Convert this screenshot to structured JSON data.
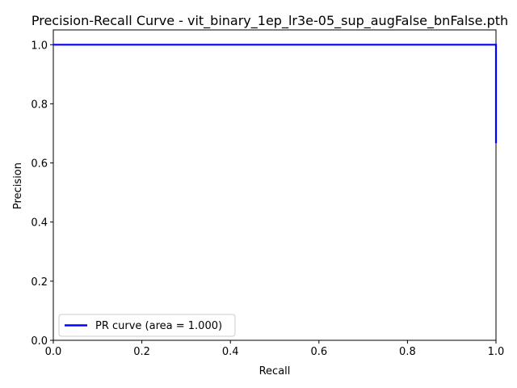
{
  "chart_data": {
    "type": "line",
    "title": "Precision-Recall Curve - vit_binary_1ep_lr3e-05_sup_augFalse_bnFalse.pth",
    "xlabel": "Recall",
    "ylabel": "Precision",
    "xlim": [
      0.0,
      1.0
    ],
    "ylim": [
      0.0,
      1.05
    ],
    "xticks": [
      "0.0",
      "0.2",
      "0.4",
      "0.6",
      "0.8",
      "1.0"
    ],
    "yticks": [
      "0.0",
      "0.2",
      "0.4",
      "0.6",
      "0.8",
      "1.0"
    ],
    "grid": false,
    "legend_position": "lower-left",
    "series": [
      {
        "name": "PR curve (area = 1.000)",
        "color": "#0000ff",
        "x": [
          0.0,
          1.0,
          1.0
        ],
        "y": [
          1.0,
          1.0,
          0.667
        ]
      }
    ]
  }
}
